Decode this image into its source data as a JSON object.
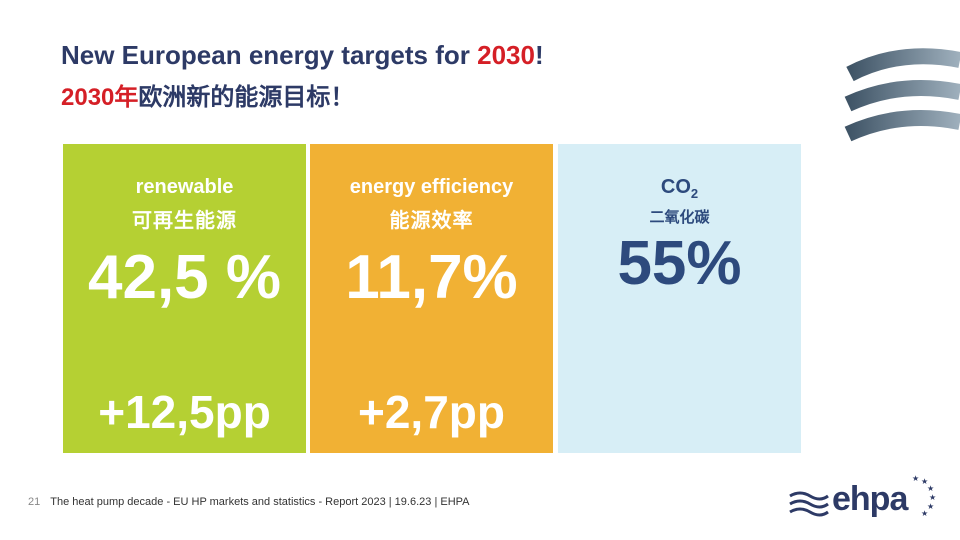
{
  "title": {
    "en_prefix": "New European energy targets for ",
    "en_year": "2030",
    "en_suffix": "!",
    "cn_year": "2030年",
    "cn_text": "欧洲新的能源目标！"
  },
  "cards": [
    {
      "label_en": "renewable",
      "label_cn": "可再生能源",
      "value": "42,5 %",
      "delta": "+12,5pp",
      "color": "#b5d033"
    },
    {
      "label_en": "energy efficiency",
      "label_cn": "能源效率",
      "value": "11,7%",
      "delta": "+2,7pp",
      "color": "#f1b134"
    },
    {
      "label_main": "CO",
      "label_sub": "2",
      "label_cn": "二氧化碳",
      "value": "55%",
      "color": "#d7eef6"
    }
  ],
  "footer": {
    "page": "21",
    "text": "The heat pump decade - EU HP markets and statistics - Report 2023 | 19.6.23 | EHPA"
  },
  "logo": {
    "text": "ehpa",
    "icon": "ehpa-logo-icon"
  },
  "colors": {
    "navy": "#2d3a66",
    "red": "#d51f26",
    "deco": "#4a5d72"
  }
}
